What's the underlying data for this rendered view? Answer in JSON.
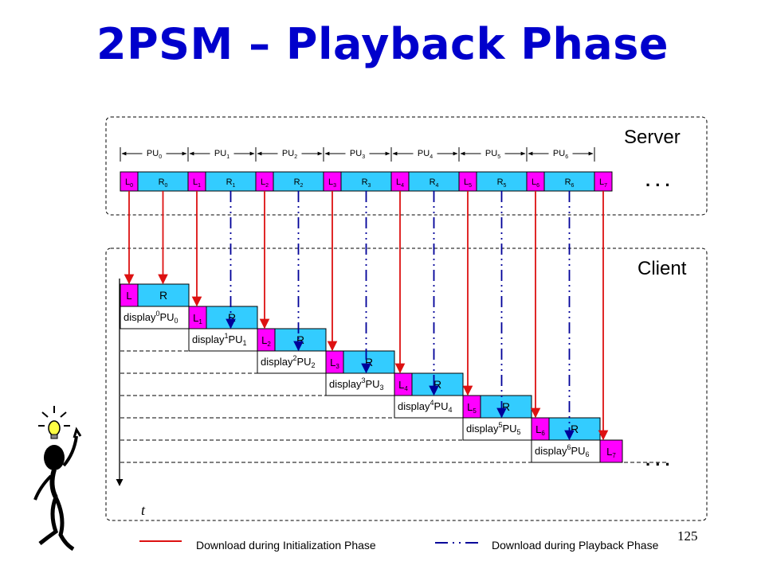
{
  "slide": {
    "title": "2PSM – Playback Phase",
    "page_number": "125"
  },
  "server": {
    "label": "Server",
    "pu_labels": [
      {
        "base": "PU",
        "sub": "0"
      },
      {
        "base": "PU",
        "sub": "1"
      },
      {
        "base": "PU",
        "sub": "2"
      },
      {
        "base": "PU",
        "sub": "3"
      },
      {
        "base": "PU",
        "sub": "4"
      },
      {
        "base": "PU",
        "sub": "5"
      },
      {
        "base": "PU",
        "sub": "6"
      }
    ],
    "segments": [
      {
        "base": "L",
        "sub": "0",
        "kind": "L"
      },
      {
        "base": "R",
        "sub": "0",
        "kind": "R"
      },
      {
        "base": "L",
        "sub": "1",
        "kind": "L"
      },
      {
        "base": "R",
        "sub": "1",
        "kind": "R"
      },
      {
        "base": "L",
        "sub": "2",
        "kind": "L"
      },
      {
        "base": "R",
        "sub": "2",
        "kind": "R"
      },
      {
        "base": "L",
        "sub": "3",
        "kind": "L"
      },
      {
        "base": "R",
        "sub": "3",
        "kind": "R"
      },
      {
        "base": "L",
        "sub": "4",
        "kind": "L"
      },
      {
        "base": "R",
        "sub": "4",
        "kind": "R"
      },
      {
        "base": "L",
        "sub": "5",
        "kind": "L"
      },
      {
        "base": "R",
        "sub": "5",
        "kind": "R"
      },
      {
        "base": "L",
        "sub": "6",
        "kind": "L"
      },
      {
        "base": "R",
        "sub": "6",
        "kind": "R"
      },
      {
        "base": "L",
        "sub": "7",
        "kind": "L"
      }
    ],
    "ellipsis": ". . ."
  },
  "client": {
    "label": "Client",
    "rows": [
      {
        "display": "display",
        "display_sup": "0",
        "pu": "PU",
        "pu_sub": "0",
        "l_base": "L",
        "l_sub": "",
        "r_label": "R"
      },
      {
        "display": "display",
        "display_sup": "1",
        "pu": "PU",
        "pu_sub": "1",
        "l_base": "L",
        "l_sub": "1",
        "r_label": "R"
      },
      {
        "display": "display",
        "display_sup": "2",
        "pu": "PU",
        "pu_sub": "2",
        "l_base": "L",
        "l_sub": "2",
        "r_label": "R"
      },
      {
        "display": "display",
        "display_sup": "3",
        "pu": "PU",
        "pu_sub": "3",
        "l_base": "L",
        "l_sub": "3",
        "r_label": "R"
      },
      {
        "display": "display",
        "display_sup": "4",
        "pu": "PU",
        "pu_sub": "4",
        "l_base": "L",
        "l_sub": "4",
        "r_label": "R"
      },
      {
        "display": "display",
        "display_sup": "5",
        "pu": "PU",
        "pu_sub": "5",
        "l_base": "L",
        "l_sub": "5",
        "r_label": "R"
      },
      {
        "display": "display",
        "display_sup": "6",
        "pu": "PU",
        "pu_sub": "6",
        "l_base": "L",
        "l_sub": "6",
        "r_label": "R"
      }
    ],
    "last_l": {
      "base": "L",
      "sub": "7"
    },
    "ellipsis": ". . .",
    "time_axis_label": "t"
  },
  "legend": {
    "init_label": "Download during Initialization Phase",
    "playback_label": "Download during Playback Phase"
  },
  "colors": {
    "title": "#0000cc",
    "l_segment": "#ff00ff",
    "r_segment": "#33ccff",
    "init_arrow": "#dd1111",
    "playback_arrow": "#000099",
    "border": "#000000"
  }
}
